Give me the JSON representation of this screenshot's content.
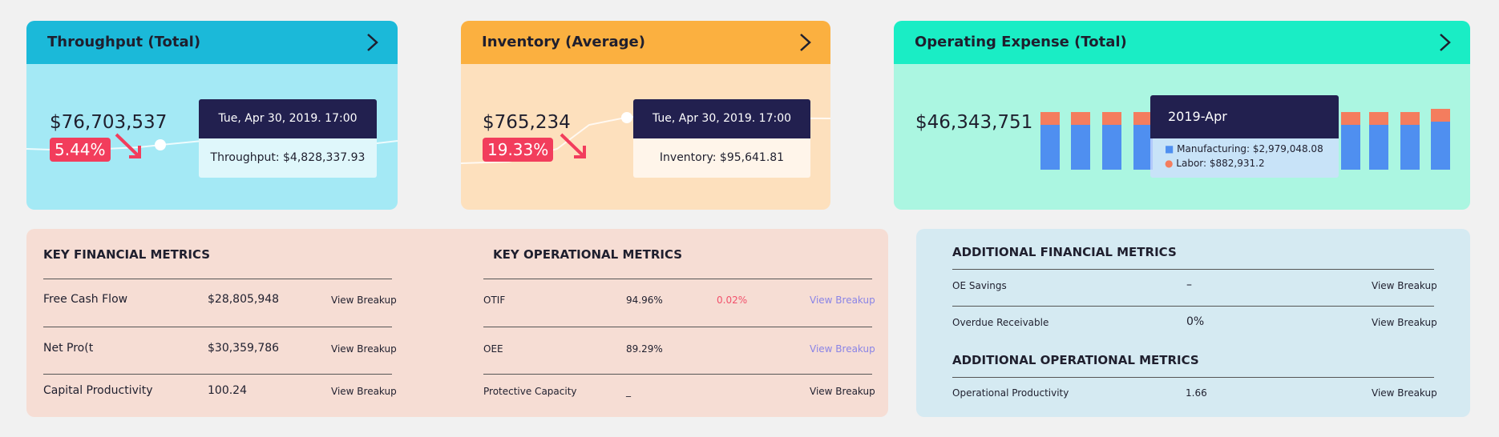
{
  "cards": [
    {
      "title": "Throughput (Total)",
      "value": "$76,703,537",
      "change": "5.44%",
      "tooltip": {
        "date": "Tue, Apr 30, 2019. 17:00",
        "text": "Throughput: $4,828,337.93"
      }
    },
    {
      "title": "Inventory (Average)",
      "value": "$765,234",
      "change": "19.33%",
      "tooltip": {
        "date": "Tue, Apr 30, 2019. 17:00",
        "text": "Inventory: $95,641.81"
      }
    },
    {
      "title": "Operating Expense (Total)",
      "value": "$46,343,751",
      "tooltip": {
        "date": "2019-Apr",
        "items": [
          "Manufacturing: $2,979,048.08",
          "Labor: $882,931.2"
        ]
      }
    }
  ],
  "key_financial": {
    "title": "KEY FINANCIAL METRICS",
    "rows": [
      {
        "label": "Free Cash Flow",
        "value": "$28,805,948",
        "link": "View Breakup"
      },
      {
        "label": "Net Pro(t",
        "value": "$30,359,786",
        "link": "View Breakup"
      },
      {
        "label": "Capital Productivity",
        "value": "100.24",
        "link": "View Breakup"
      }
    ]
  },
  "key_operational": {
    "title": "KEY OPERATIONAL METRICS",
    "rows": [
      {
        "label": "OTIF",
        "value": "94.96%",
        "change": "0.02%",
        "link": "View Breakup"
      },
      {
        "label": "OEE",
        "value": "89.29%",
        "link": "View Breakup"
      },
      {
        "label": "Protective Capacity",
        "value": "_",
        "link": "View Breakup"
      }
    ]
  },
  "additional_financial": {
    "title": "ADDITIONAL FINANCIAL METRICS",
    "rows": [
      {
        "label": "OE Savings",
        "value": "–",
        "link": "View Breakup"
      },
      {
        "label": "Overdue Receivable",
        "value": "0%",
        "link": "View Breakup"
      }
    ]
  },
  "additional_operational": {
    "title": "ADDITIONAL OPERATIONAL METRICS",
    "rows": [
      {
        "label": "Operational Productivity",
        "value": "1.66",
        "link": "View Breakup"
      }
    ]
  }
}
